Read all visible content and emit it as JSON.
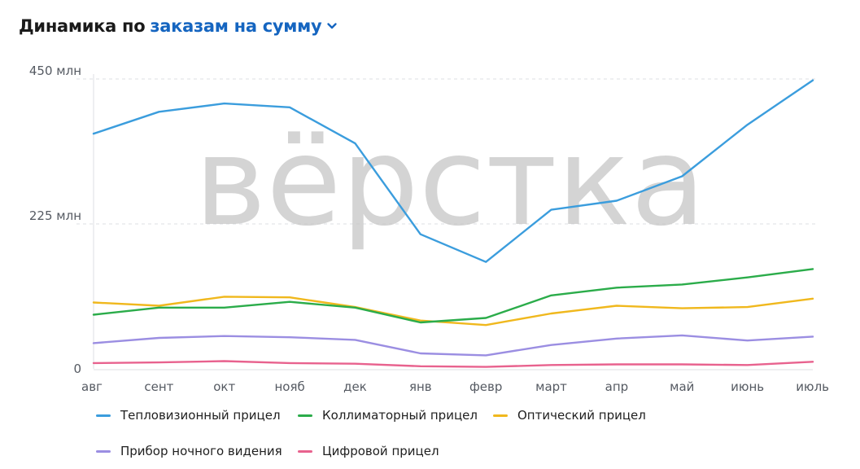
{
  "header": {
    "title": "Динамика по",
    "metric": "заказам на сумму",
    "dropdown_icon": "chevron-down-icon"
  },
  "watermark": "вёрстка",
  "chart_data": {
    "type": "line",
    "categories": [
      "авг",
      "сент",
      "окт",
      "нояб",
      "дек",
      "янв",
      "февр",
      "март",
      "апр",
      "май",
      "июнь",
      "июль"
    ],
    "y_ticks": [
      "0",
      "225 млн",
      "450 млн"
    ],
    "ylim": [
      0,
      450
    ],
    "grid": true,
    "legend_position": "bottom",
    "series": [
      {
        "name": "Тепловизионный прицел",
        "color": "#3b9ddd",
        "values": [
          365,
          399,
          412,
          406,
          350,
          209,
          166,
          247,
          261,
          299,
          379,
          448
        ]
      },
      {
        "name": "Коллиматорный прицел",
        "color": "#2bac4a",
        "values": [
          84,
          95,
          95,
          104,
          95,
          72,
          79,
          114,
          126,
          131,
          142,
          155
        ]
      },
      {
        "name": "Оптический прицел",
        "color": "#f0b81d",
        "values": [
          103,
          98,
          112,
          111,
          96,
          75,
          68,
          86,
          98,
          94,
          96,
          109
        ]
      },
      {
        "name": "Прибор ночного видения",
        "color": "#9b8ee2",
        "values": [
          40,
          48,
          51,
          49,
          45,
          24,
          21,
          37,
          47,
          52,
          44,
          50
        ]
      },
      {
        "name": "Цифровой прицел",
        "color": "#e8628e",
        "values": [
          9,
          10,
          12,
          9,
          8,
          4,
          3,
          6,
          7,
          7,
          6,
          11
        ]
      }
    ]
  }
}
